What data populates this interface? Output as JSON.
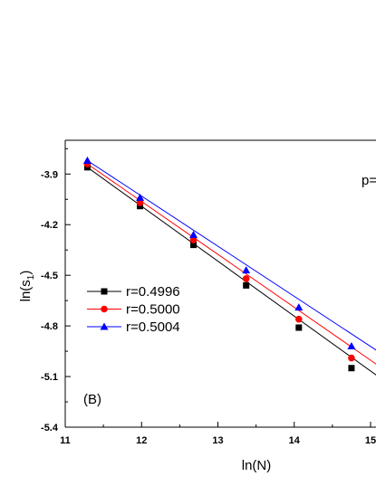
{
  "chart_data": {
    "type": "scatter",
    "title": "",
    "xlabel": "ln(N)",
    "ylabel_main": "ln(s",
    "ylabel_sub": "1",
    "ylabel_close": ")",
    "xlim": [
      11,
      15.5
    ],
    "ylim": [
      -5.4,
      -3.7
    ],
    "xticks": [
      11,
      12,
      13,
      14,
      15
    ],
    "xtick_labels": [
      "11",
      "12",
      "13",
      "14",
      "15"
    ],
    "yticks": [
      -3.9,
      -4.2,
      -4.5,
      -4.8,
      -5.1,
      -5.4
    ],
    "ytick_labels": [
      "-3.9",
      "-4.2",
      "-4.5",
      "-4.8",
      "-5.1",
      "-5.4"
    ],
    "panel_label": "(B)",
    "top_right_text": "p=",
    "grid": false,
    "legend_position": "left-middle",
    "series": [
      {
        "name": "r=0.4996",
        "color": "#000000",
        "marker": "square",
        "x": [
          11.29,
          11.98,
          12.68,
          13.37,
          14.06,
          14.75
        ],
        "y": [
          -3.86,
          -4.09,
          -4.32,
          -4.56,
          -4.81,
          -5.05
        ]
      },
      {
        "name": "r=0.5000",
        "color": "#ff0000",
        "marker": "circle",
        "x": [
          11.29,
          11.98,
          12.68,
          13.37,
          14.06,
          14.75
        ],
        "y": [
          -3.84,
          -4.07,
          -4.29,
          -4.52,
          -4.76,
          -4.99
        ]
      },
      {
        "name": "r=0.5004",
        "color": "#0000ff",
        "marker": "triangle",
        "x": [
          11.29,
          11.98,
          12.68,
          13.37,
          14.06,
          14.75
        ],
        "y": [
          -3.82,
          -4.04,
          -4.26,
          -4.47,
          -4.69,
          -4.92
        ]
      }
    ],
    "fit_lines": [
      {
        "color": "#000000",
        "x": [
          11.29,
          15.5
        ],
        "y": [
          -3.86,
          -5.23
        ]
      },
      {
        "color": "#ff0000",
        "x": [
          11.29,
          15.5
        ],
        "y": [
          -3.84,
          -5.16
        ]
      },
      {
        "color": "#0000ff",
        "x": [
          11.29,
          15.5
        ],
        "y": [
          -3.82,
          -5.07
        ]
      }
    ]
  }
}
